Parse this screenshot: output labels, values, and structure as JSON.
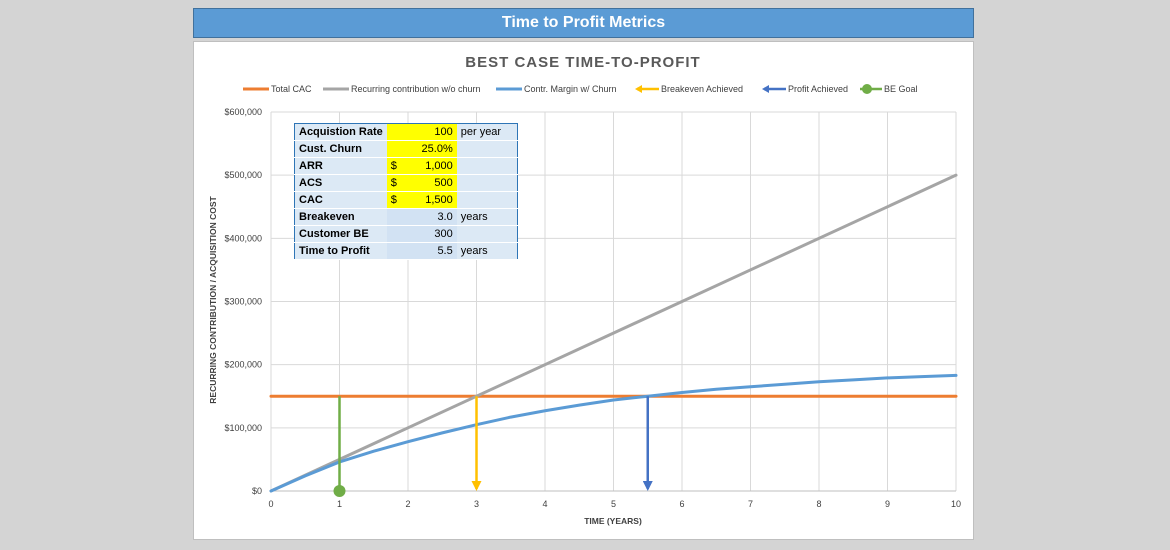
{
  "banner": {
    "title": "Time to Profit Metrics"
  },
  "metrics": [
    {
      "label": "Acquistion Rate",
      "currency": "",
      "value": "100",
      "unit": "per year",
      "input": true
    },
    {
      "label": "Cust. Churn",
      "currency": "",
      "value": "25.0%",
      "unit": "",
      "input": true
    },
    {
      "label": "ARR",
      "currency": "$",
      "value": "1,000",
      "unit": "",
      "input": true
    },
    {
      "label": "ACS",
      "currency": "$",
      "value": "500",
      "unit": "",
      "input": true
    },
    {
      "label": "CAC",
      "currency": "$",
      "value": "1,500",
      "unit": "",
      "input": true
    },
    {
      "label": "Breakeven",
      "currency": "",
      "value": "3.0",
      "unit": "years",
      "input": false
    },
    {
      "label": "Customer BE",
      "currency": "",
      "value": "300",
      "unit": "",
      "input": false
    },
    {
      "label": "Time to Profit",
      "currency": "",
      "value": "5.5",
      "unit": "years",
      "input": false
    }
  ],
  "chart_data": {
    "type": "line",
    "title": "BEST CASE TIME-TO-PROFIT",
    "xlabel": "TIME (YEARS)",
    "ylabel": "RECURRING CONTRIBUTION / ACQUISITION COST",
    "xlim": [
      0,
      10
    ],
    "ylim": [
      0,
      600000
    ],
    "x_ticks": [
      "0",
      "1",
      "2",
      "3",
      "4",
      "5",
      "6",
      "7",
      "8",
      "9",
      "10"
    ],
    "y_ticks": [
      "$0",
      "$100,000",
      "$200,000",
      "$300,000",
      "$400,000",
      "$500,000",
      "$600,000"
    ],
    "grid": true,
    "legend_position": "top",
    "series": [
      {
        "name": "Total CAC",
        "color": "#ed7d31",
        "x": [
          0,
          10
        ],
        "y": [
          150000,
          150000
        ]
      },
      {
        "name": "Recurring contribution w/o churn",
        "color": "#a5a5a5",
        "x": [
          0,
          10
        ],
        "y": [
          0,
          500000
        ]
      },
      {
        "name": "Contr. Margin w/ Churn",
        "color": "#5b9bd5",
        "x": [
          0,
          0.5,
          1,
          1.5,
          2,
          2.5,
          3,
          3.5,
          4,
          4.5,
          5,
          5.5,
          6,
          6.5,
          7,
          7.5,
          8,
          8.5,
          9,
          9.5,
          10
        ],
        "y": [
          0,
          24000,
          46000,
          63000,
          78000,
          92000,
          105000,
          117000,
          127000,
          136000,
          144000,
          150000,
          156000,
          161000,
          165000,
          169000,
          173000,
          176000,
          179000,
          181000,
          183000
        ]
      }
    ],
    "markers": [
      {
        "name": "Breakeven Achieved",
        "color": "#ffc000",
        "x": 3,
        "from_y": 150000,
        "to_y": 0,
        "type": "arrow"
      },
      {
        "name": "Profit Achieved",
        "color": "#4472c4",
        "x": 5.5,
        "from_y": 150000,
        "to_y": 0,
        "type": "arrow"
      },
      {
        "name": "BE Goal",
        "color": "#70ad47",
        "x": 1,
        "from_y": 150000,
        "to_y": 0,
        "type": "dot"
      }
    ]
  }
}
